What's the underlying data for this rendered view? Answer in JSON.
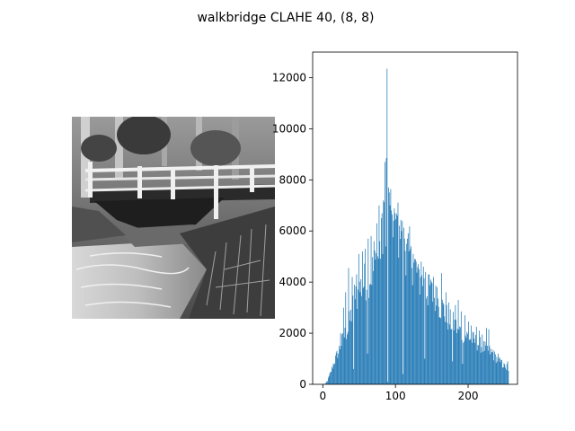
{
  "figure": {
    "title": "walkbridge CLAHE 40, (8, 8)"
  },
  "image_panel": {
    "subject": "grayscale photograph of a wooden footbridge over a stream"
  },
  "chart_data": {
    "type": "bar",
    "title": "",
    "xlabel": "",
    "ylabel": "",
    "bins": 256,
    "xlim": [
      -14,
      268
    ],
    "ylim": [
      0,
      13000
    ],
    "x_ticks": [
      0,
      100,
      200
    ],
    "y_ticks": [
      0,
      2000,
      4000,
      6000,
      8000,
      10000,
      12000
    ],
    "bar_color": "#1f77b4",
    "grid": false,
    "legend": "none",
    "shape_points": [
      [
        0,
        0
      ],
      [
        3,
        20
      ],
      [
        6,
        150
      ],
      [
        10,
        450
      ],
      [
        14,
        800
      ],
      [
        18,
        1100
      ],
      [
        22,
        1400
      ],
      [
        26,
        1700
      ],
      [
        30,
        2000
      ],
      [
        34,
        2200
      ],
      [
        38,
        2700
      ],
      [
        42,
        3200
      ],
      [
        46,
        3500
      ],
      [
        50,
        3800
      ],
      [
        55,
        4000
      ],
      [
        60,
        4200
      ],
      [
        65,
        4400
      ],
      [
        70,
        4600
      ],
      [
        75,
        5000
      ],
      [
        80,
        5600
      ],
      [
        85,
        6400
      ],
      [
        88,
        7800
      ],
      [
        90,
        7200
      ],
      [
        95,
        6800
      ],
      [
        100,
        6400
      ],
      [
        105,
        6000
      ],
      [
        110,
        5600
      ],
      [
        115,
        5400
      ],
      [
        120,
        5200
      ],
      [
        125,
        4800
      ],
      [
        130,
        4400
      ],
      [
        135,
        4100
      ],
      [
        140,
        3900
      ],
      [
        145,
        3700
      ],
      [
        150,
        3600
      ],
      [
        155,
        3400
      ],
      [
        160,
        3200
      ],
      [
        165,
        3000
      ],
      [
        170,
        2700
      ],
      [
        175,
        2500
      ],
      [
        180,
        2400
      ],
      [
        185,
        2200
      ],
      [
        190,
        2100
      ],
      [
        195,
        2000
      ],
      [
        200,
        1900
      ],
      [
        205,
        1800
      ],
      [
        210,
        1700
      ],
      [
        215,
        1600
      ],
      [
        220,
        1500
      ],
      [
        225,
        1400
      ],
      [
        230,
        1300
      ],
      [
        235,
        1150
      ],
      [
        240,
        1000
      ],
      [
        245,
        850
      ],
      [
        250,
        700
      ],
      [
        253,
        600
      ],
      [
        255,
        500
      ]
    ],
    "spikes": [
      [
        21,
        1200
      ],
      [
        24,
        2000
      ],
      [
        28,
        3000
      ],
      [
        31,
        3600
      ],
      [
        35,
        4550
      ],
      [
        40,
        4200
      ],
      [
        43,
        3900
      ],
      [
        46,
        4300
      ],
      [
        49,
        5100
      ],
      [
        54,
        5200
      ],
      [
        58,
        5300
      ],
      [
        62,
        5700
      ],
      [
        66,
        5800
      ],
      [
        70,
        5600
      ],
      [
        74,
        6300
      ],
      [
        77,
        7000
      ],
      [
        80,
        6500
      ],
      [
        83,
        7200
      ],
      [
        85,
        8700
      ],
      [
        87,
        8850
      ],
      [
        88,
        12350
      ],
      [
        90,
        7700
      ],
      [
        92,
        7000
      ],
      [
        94,
        6800
      ],
      [
        97,
        6400
      ],
      [
        99,
        6700
      ],
      [
        102,
        6600
      ],
      [
        105,
        6200
      ],
      [
        108,
        6000
      ],
      [
        112,
        5700
      ],
      [
        115,
        5500
      ],
      [
        118,
        5200
      ],
      [
        121,
        5400
      ],
      [
        124,
        5100
      ],
      [
        128,
        4800
      ],
      [
        131,
        4700
      ],
      [
        135,
        4800
      ],
      [
        138,
        4600
      ],
      [
        141,
        4400
      ],
      [
        145,
        4300
      ],
      [
        148,
        4100
      ],
      [
        152,
        4200
      ],
      [
        157,
        3800
      ],
      [
        163,
        4350
      ],
      [
        169,
        3600
      ],
      [
        173,
        3200
      ],
      [
        178,
        3300
      ],
      [
        182,
        3100
      ],
      [
        186,
        3300
      ],
      [
        190,
        2850
      ],
      [
        195,
        2700
      ],
      [
        200,
        2450
      ],
      [
        204,
        2300
      ],
      [
        211,
        2250
      ],
      [
        215,
        2100
      ],
      [
        219,
        1950
      ],
      [
        225,
        2200
      ],
      [
        228,
        2150
      ],
      [
        234,
        1350
      ],
      [
        241,
        1200
      ],
      [
        246,
        950
      ],
      [
        251,
        650
      ],
      [
        253,
        800
      ],
      [
        254,
        900
      ]
    ],
    "dips": [
      [
        42,
        600
      ],
      [
        61,
        1200
      ],
      [
        89,
        100
      ],
      [
        110,
        400
      ],
      [
        140,
        1000
      ],
      [
        178,
        900
      ],
      [
        192,
        800
      ]
    ]
  }
}
